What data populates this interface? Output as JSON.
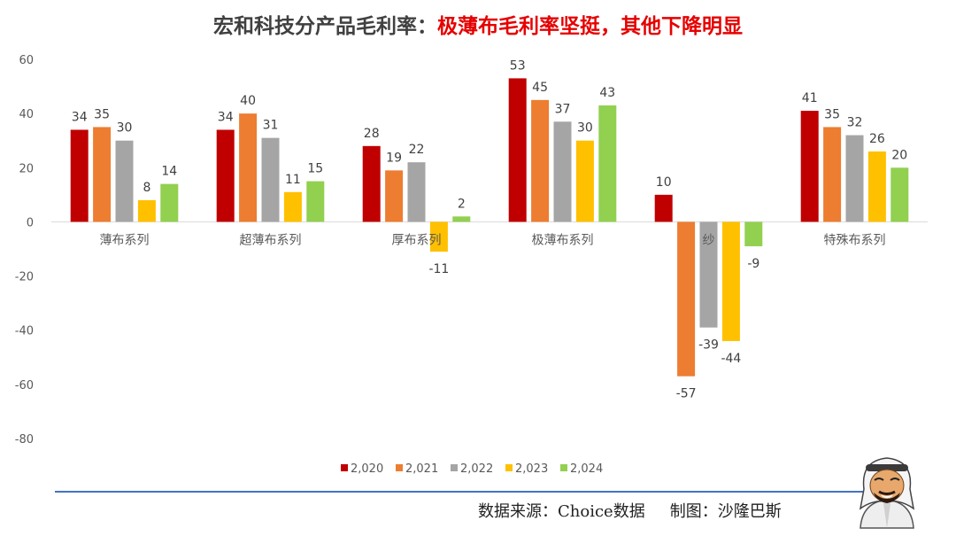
{
  "title": {
    "prefix": "宏和科技分产品毛利率：",
    "highlight": "极薄布毛利率坚挺，其他下降明显"
  },
  "source": {
    "data_source": "数据来源：Choice数据",
    "author": "制图：沙隆巴斯"
  },
  "colors": {
    "title_accent": "#e60000",
    "footer_line": "#4472c4"
  },
  "chart_data": {
    "type": "bar",
    "categories": [
      "薄布系列",
      "超薄布系列",
      "厚布系列",
      "极薄布系列",
      "纱",
      "特殊布系列"
    ],
    "series": [
      {
        "name": "2,020",
        "color": "#c00000",
        "values": [
          34,
          34,
          28,
          53,
          10,
          41
        ]
      },
      {
        "name": "2,021",
        "color": "#ed7d31",
        "values": [
          35,
          40,
          19,
          45,
          -57,
          35
        ]
      },
      {
        "name": "2,022",
        "color": "#a5a5a5",
        "values": [
          30,
          31,
          22,
          37,
          -39,
          32
        ]
      },
      {
        "name": "2,023",
        "color": "#ffc000",
        "values": [
          8,
          11,
          -11,
          30,
          -44,
          26
        ]
      },
      {
        "name": "2,024",
        "color": "#92d050",
        "values": [
          14,
          15,
          2,
          43,
          -9,
          20
        ]
      }
    ],
    "data_labels": [
      [
        "34",
        "34",
        "28",
        "53",
        "10",
        "41"
      ],
      [
        "35",
        "40",
        "19",
        "45",
        "-57",
        "35"
      ],
      [
        "30",
        "31",
        "22",
        "37",
        "-39",
        "32"
      ],
      [
        "8",
        "11",
        "-11",
        "30",
        "-44",
        "26"
      ],
      [
        "14",
        "15",
        "2",
        "43",
        "-9",
        "20"
      ]
    ],
    "yticks": [
      "60",
      "40",
      "20",
      "0",
      "-20",
      "-40",
      "-60",
      "-80"
    ],
    "ylim": [
      -80,
      60
    ],
    "grid": false,
    "legend_position": "bottom"
  }
}
